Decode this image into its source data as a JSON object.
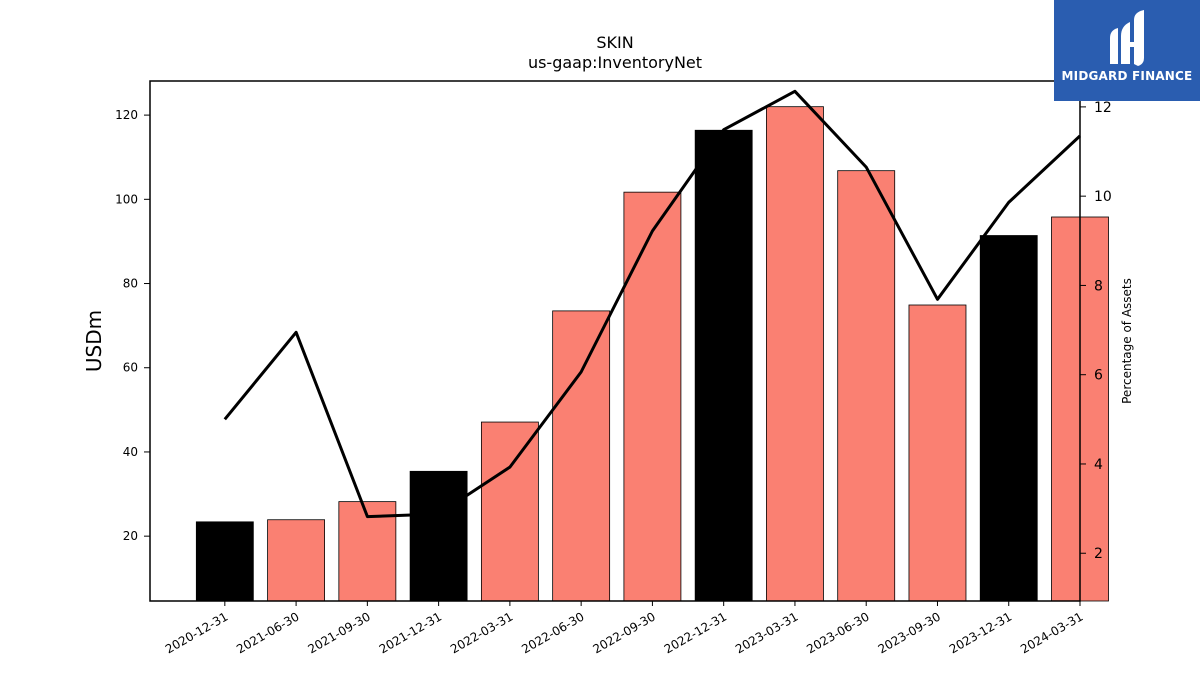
{
  "logo": {
    "text": "MIDGARD FINANCE"
  },
  "colors": {
    "bar_default": "#fa8072",
    "bar_highlight": "#000000",
    "line": "#000000",
    "logo_bg": "#2a5db0"
  },
  "chart_data": {
    "type": "bar",
    "title": "SKIN",
    "subtitle": "us-gaap:InventoryNet",
    "ylabel": "USDm",
    "y2label": "Percentage of Assets",
    "categories": [
      "2020-12-31",
      "2021-06-30",
      "2021-09-30",
      "2021-12-31",
      "2022-03-31",
      "2022-06-30",
      "2022-09-30",
      "2022-12-31",
      "2023-03-31",
      "2023-06-30",
      "2023-09-30",
      "2023-12-31",
      "2024-03-31"
    ],
    "series": [
      {
        "type": "bar",
        "values": [
          23.4,
          23.9,
          28.2,
          35.4,
          47.1,
          73.5,
          101.7,
          116.4,
          122.0,
          106.8,
          74.9,
          91.4,
          95.8
        ],
        "highlight": [
          true,
          false,
          false,
          true,
          false,
          false,
          false,
          true,
          false,
          false,
          false,
          true,
          false
        ]
      },
      {
        "type": "line",
        "axis": "right",
        "values": [
          5.0,
          6.95,
          2.82,
          2.88,
          3.93,
          6.06,
          9.22,
          11.49,
          12.35,
          10.65,
          7.69,
          9.86,
          11.35
        ]
      }
    ],
    "ylim": [
      4.6,
      128.1
    ],
    "yticks": [
      20,
      40,
      60,
      80,
      100,
      120
    ],
    "y2lim": [
      0.93,
      12.58
    ],
    "y2ticks": [
      2,
      4,
      6,
      8,
      10,
      12
    ],
    "grid": false,
    "legend": "none"
  }
}
